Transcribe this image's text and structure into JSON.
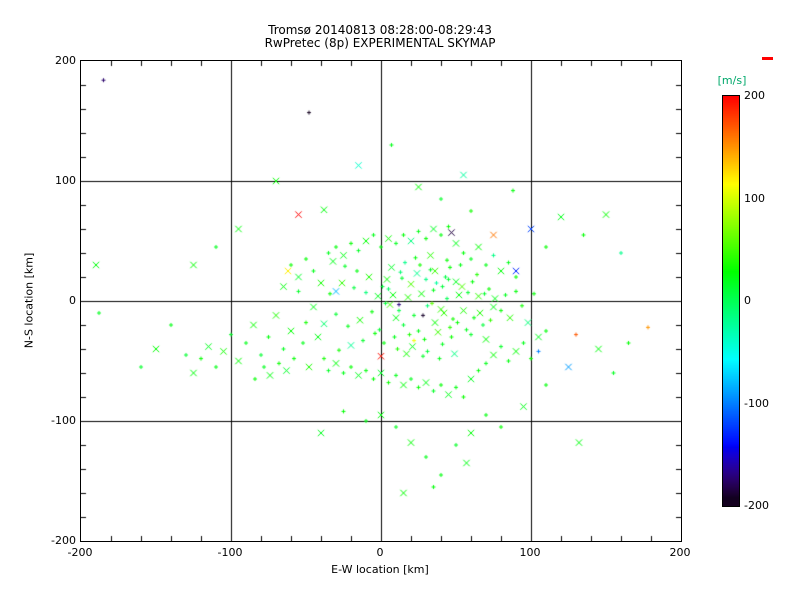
{
  "title_line1": "Tromsø 20140813 08:28:00-08:29:43",
  "title_line2": "RwPretec (8p) EXPERIMENTAL SKYMAP",
  "axes": {
    "xlabel": "E-W location [km]",
    "ylabel": "N-S location [km]",
    "xticks": [
      -200,
      -100,
      0,
      100,
      200
    ],
    "yticks": [
      200,
      100,
      0,
      -100,
      -200
    ],
    "xlim": [
      -200,
      200
    ],
    "ylim": [
      -200,
      200
    ],
    "grid_values": [
      -100,
      0,
      100
    ],
    "minor_tick_step": 20
  },
  "colorbar": {
    "label": "[m/s]",
    "ticks": [
      200,
      100,
      0,
      -100,
      -200
    ],
    "min": -200,
    "max": 200,
    "label_color": "#00a86b",
    "max_indicator_color": "#ff0000"
  },
  "chart_data": {
    "type": "scatter",
    "title": "Tromsø 20140813 08:28:00-08:29:43 / RwPretec (8p) EXPERIMENTAL SKYMAP",
    "xlabel": "E-W location [km]",
    "ylabel": "N-S location [km]",
    "xlim": [
      -200,
      200
    ],
    "ylim": [
      -200,
      200
    ],
    "color_scale": {
      "label": "[m/s]",
      "min": -200,
      "max": 200,
      "type": "rainbow"
    },
    "point_format": [
      "x_km",
      "y_km",
      "velocity_mps",
      "marker_size_class"
    ],
    "points": [
      [
        3,
        -2,
        10,
        1
      ],
      [
        8,
        5,
        25,
        2
      ],
      [
        12,
        -8,
        5,
        1
      ],
      [
        18,
        3,
        40,
        2
      ],
      [
        22,
        -12,
        15,
        1
      ],
      [
        27,
        6,
        30,
        2
      ],
      [
        31,
        -4,
        -10,
        1
      ],
      [
        35,
        9,
        20,
        1
      ],
      [
        40,
        -7,
        45,
        2
      ],
      [
        44,
        2,
        0,
        1
      ],
      [
        48,
        -15,
        35,
        1
      ],
      [
        52,
        5,
        25,
        2
      ],
      [
        15,
        -20,
        10,
        1
      ],
      [
        20,
        14,
        55,
        2
      ],
      [
        25,
        -25,
        20,
        1
      ],
      [
        30,
        18,
        -15,
        1
      ],
      [
        36,
        -18,
        30,
        2
      ],
      [
        41,
        12,
        8,
        1
      ],
      [
        46,
        -22,
        42,
        1
      ],
      [
        50,
        16,
        18,
        2
      ],
      [
        5,
        10,
        -5,
        1
      ],
      [
        10,
        -14,
        22,
        2
      ],
      [
        14,
        19,
        12,
        1
      ],
      [
        19,
        -28,
        38,
        1
      ],
      [
        24,
        23,
        -20,
        2
      ],
      [
        29,
        -32,
        28,
        1
      ],
      [
        33,
        26,
        15,
        1
      ],
      [
        38,
        -26,
        50,
        2
      ],
      [
        43,
        20,
        5,
        1
      ],
      [
        47,
        -30,
        33,
        1
      ],
      [
        -2,
        4,
        18,
        2
      ],
      [
        -6,
        -9,
        27,
        1
      ],
      [
        -10,
        7,
        -12,
        1
      ],
      [
        -14,
        -16,
        35,
        2
      ],
      [
        -18,
        11,
        8,
        1
      ],
      [
        -22,
        -21,
        20,
        1
      ],
      [
        -26,
        15,
        45,
        2
      ],
      [
        -30,
        -11,
        12,
        1
      ],
      [
        -34,
        6,
        30,
        1
      ],
      [
        -38,
        -19,
        -8,
        2
      ],
      [
        2,
        -35,
        25,
        1
      ],
      [
        7,
        28,
        15,
        2
      ],
      [
        11,
        -40,
        40,
        1
      ],
      [
        16,
        32,
        -18,
        1
      ],
      [
        21,
        -38,
        22,
        2
      ],
      [
        26,
        30,
        35,
        1
      ],
      [
        31,
        -42,
        10,
        1
      ],
      [
        36,
        25,
        48,
        2
      ],
      [
        41,
        -36,
        18,
        1
      ],
      [
        46,
        28,
        28,
        1
      ],
      [
        55,
        -8,
        38,
        2
      ],
      [
        58,
        7,
        12,
        1
      ],
      [
        62,
        -14,
        25,
        1
      ],
      [
        65,
        4,
        45,
        2
      ],
      [
        68,
        -20,
        8,
        1
      ],
      [
        72,
        10,
        32,
        1
      ],
      [
        75,
        -5,
        20,
        2
      ],
      [
        60,
        -28,
        15,
        1
      ],
      [
        64,
        22,
        40,
        1
      ],
      [
        70,
        -32,
        28,
        2
      ],
      [
        -1,
        -24,
        12,
        1
      ],
      [
        4,
        18,
        30,
        2
      ],
      [
        9,
        -30,
        20,
        1
      ],
      [
        13,
        24,
        -10,
        1
      ],
      [
        17,
        -44,
        35,
        2
      ],
      [
        23,
        36,
        25,
        1
      ],
      [
        28,
        -46,
        15,
        1
      ],
      [
        33,
        38,
        42,
        2
      ],
      [
        39,
        -48,
        20,
        1
      ],
      [
        44,
        34,
        30,
        1
      ],
      [
        49,
        -44,
        -15,
        2
      ],
      [
        53,
        30,
        22,
        1
      ],
      [
        6,
        -3,
        50,
        2
      ],
      [
        1,
        12,
        8,
        1
      ],
      [
        -4,
        -27,
        28,
        1
      ],
      [
        -8,
        20,
        38,
        2
      ],
      [
        -12,
        -33,
        14,
        1
      ],
      [
        -16,
        25,
        24,
        1
      ],
      [
        -20,
        -37,
        -22,
        2
      ],
      [
        -24,
        29,
        16,
        1
      ],
      [
        -28,
        -41,
        34,
        1
      ],
      [
        -32,
        33,
        20,
        2
      ],
      [
        34,
        -2,
        60,
        1
      ],
      [
        37,
        15,
        -25,
        1
      ],
      [
        42,
        -10,
        44,
        2
      ],
      [
        45,
        18,
        12,
        1
      ],
      [
        51,
        -18,
        30,
        1
      ],
      [
        54,
        12,
        55,
        2
      ],
      [
        57,
        -24,
        18,
        1
      ],
      [
        61,
        16,
        26,
        1
      ],
      [
        66,
        -10,
        38,
        2
      ],
      [
        69,
        6,
        14,
        1
      ],
      [
        73,
        -16,
        46,
        1
      ],
      [
        76,
        2,
        22,
        2
      ],
      [
        80,
        -8,
        30,
        1
      ],
      [
        83,
        5,
        18,
        1
      ],
      [
        86,
        -14,
        42,
        2
      ],
      [
        90,
        8,
        26,
        1
      ],
      [
        94,
        -4,
        34,
        1
      ],
      [
        98,
        -18,
        -12,
        2
      ],
      [
        102,
        6,
        28,
        1
      ],
      [
        -45,
        -5,
        20,
        2
      ],
      [
        -50,
        -18,
        35,
        1
      ],
      [
        -55,
        8,
        15,
        1
      ],
      [
        -60,
        -25,
        28,
        2
      ],
      [
        -65,
        -40,
        18,
        1
      ],
      [
        -70,
        -12,
        40,
        2
      ],
      [
        -75,
        -30,
        25,
        1
      ],
      [
        -80,
        -45,
        12,
        1
      ],
      [
        -85,
        -20,
        32,
        2
      ],
      [
        -90,
        -35,
        20,
        1
      ],
      [
        -95,
        -50,
        28,
        2
      ],
      [
        -100,
        -28,
        15,
        1
      ],
      [
        -105,
        -42,
        35,
        2
      ],
      [
        -110,
        -55,
        22,
        1
      ],
      [
        -115,
        -38,
        18,
        2
      ],
      [
        -120,
        -48,
        30,
        1
      ],
      [
        -125,
        -60,
        25,
        2
      ],
      [
        -130,
        -45,
        12,
        1
      ],
      [
        -48,
        -55,
        38,
        2
      ],
      [
        -52,
        -35,
        20,
        1
      ],
      [
        -58,
        -48,
        28,
        1
      ],
      [
        -63,
        -58,
        15,
        2
      ],
      [
        -68,
        -52,
        32,
        1
      ],
      [
        -74,
        -62,
        24,
        2
      ],
      [
        -78,
        -55,
        18,
        1
      ],
      [
        -84,
        -65,
        28,
        1
      ],
      [
        -42,
        -30,
        22,
        2
      ],
      [
        -38,
        -48,
        35,
        1
      ],
      [
        -35,
        -58,
        16,
        1
      ],
      [
        -30,
        -52,
        26,
        2
      ],
      [
        -25,
        -60,
        20,
        1
      ],
      [
        -20,
        -55,
        30,
        1
      ],
      [
        -15,
        -62,
        18,
        2
      ],
      [
        -10,
        -58,
        24,
        1
      ],
      [
        -5,
        -65,
        28,
        1
      ],
      [
        0,
        -60,
        15,
        2
      ],
      [
        5,
        -68,
        32,
        1
      ],
      [
        10,
        -62,
        20,
        1
      ],
      [
        15,
        -70,
        26,
        2
      ],
      [
        20,
        -65,
        18,
        1
      ],
      [
        25,
        -72,
        30,
        1
      ],
      [
        30,
        -68,
        22,
        2
      ],
      [
        35,
        -75,
        16,
        1
      ],
      [
        40,
        -70,
        28,
        1
      ],
      [
        45,
        -78,
        20,
        2
      ],
      [
        50,
        -72,
        24,
        1
      ],
      [
        55,
        -80,
        32,
        1
      ],
      [
        60,
        -65,
        18,
        2
      ],
      [
        65,
        -58,
        26,
        1
      ],
      [
        70,
        -52,
        20,
        1
      ],
      [
        75,
        -45,
        30,
        2
      ],
      [
        80,
        -38,
        16,
        1
      ],
      [
        85,
        -50,
        24,
        1
      ],
      [
        90,
        -42,
        28,
        2
      ],
      [
        95,
        -35,
        20,
        1
      ],
      [
        100,
        -48,
        32,
        1
      ],
      [
        105,
        -30,
        18,
        2
      ],
      [
        110,
        -25,
        26,
        1
      ],
      [
        -40,
        15,
        35,
        2
      ],
      [
        -45,
        25,
        20,
        1
      ],
      [
        -50,
        35,
        28,
        1
      ],
      [
        -55,
        20,
        15,
        2
      ],
      [
        -60,
        30,
        32,
        1
      ],
      [
        -65,
        12,
        24,
        2
      ],
      [
        -35,
        40,
        18,
        1
      ],
      [
        -30,
        45,
        26,
        1
      ],
      [
        -25,
        38,
        22,
        2
      ],
      [
        -20,
        48,
        30,
        1
      ],
      [
        -15,
        42,
        16,
        1
      ],
      [
        -10,
        50,
        28,
        2
      ],
      [
        -5,
        55,
        20,
        1
      ],
      [
        0,
        45,
        24,
        1
      ],
      [
        5,
        52,
        32,
        2
      ],
      [
        10,
        48,
        18,
        1
      ],
      [
        15,
        55,
        26,
        1
      ],
      [
        20,
        50,
        -14,
        2
      ],
      [
        25,
        58,
        22,
        1
      ],
      [
        30,
        52,
        28,
        1
      ],
      [
        35,
        60,
        16,
        2
      ],
      [
        40,
        55,
        24,
        1
      ],
      [
        45,
        62,
        30,
        1
      ],
      [
        50,
        48,
        20,
        2
      ],
      [
        55,
        40,
        26,
        1
      ],
      [
        60,
        35,
        18,
        1
      ],
      [
        65,
        45,
        28,
        2
      ],
      [
        70,
        30,
        22,
        1
      ],
      [
        75,
        38,
        -16,
        1
      ],
      [
        80,
        25,
        26,
        2
      ],
      [
        85,
        32,
        20,
        1
      ],
      [
        90,
        20,
        30,
        1
      ],
      [
        -185,
        184,
        -175,
        1
      ],
      [
        -48,
        157,
        -200,
        1
      ],
      [
        -15,
        113,
        -40,
        2
      ],
      [
        7,
        130,
        20,
        1
      ],
      [
        25,
        95,
        30,
        2
      ],
      [
        40,
        85,
        15,
        1
      ],
      [
        55,
        105,
        -25,
        2
      ],
      [
        60,
        75,
        35,
        1
      ],
      [
        75,
        55,
        160,
        2
      ],
      [
        88,
        92,
        25,
        1
      ],
      [
        100,
        60,
        -120,
        2
      ],
      [
        110,
        45,
        30,
        1
      ],
      [
        120,
        70,
        20,
        2
      ],
      [
        135,
        55,
        28,
        1
      ],
      [
        150,
        72,
        32,
        2
      ],
      [
        160,
        40,
        -18,
        1
      ],
      [
        -95,
        60,
        25,
        2
      ],
      [
        -110,
        45,
        18,
        1
      ],
      [
        -125,
        30,
        30,
        2
      ],
      [
        -140,
        -20,
        22,
        1
      ],
      [
        -150,
        -40,
        28,
        2
      ],
      [
        -160,
        -55,
        15,
        1
      ],
      [
        -190,
        30,
        25,
        2
      ],
      [
        -188,
        -10,
        18,
        1
      ],
      [
        -70,
        100,
        30,
        2
      ],
      [
        -38,
        76,
        25,
        2
      ],
      [
        -55,
        72,
        200,
        2
      ],
      [
        0,
        -95,
        25,
        2
      ],
      [
        10,
        -105,
        18,
        1
      ],
      [
        20,
        -118,
        28,
        2
      ],
      [
        30,
        -130,
        20,
        1
      ],
      [
        40,
        -145,
        24,
        1
      ],
      [
        15,
        -160,
        30,
        2
      ],
      [
        50,
        -120,
        16,
        1
      ],
      [
        60,
        -110,
        26,
        2
      ],
      [
        -10,
        -100,
        22,
        1
      ],
      [
        -25,
        -92,
        28,
        1
      ],
      [
        -40,
        -110,
        18,
        2
      ],
      [
        70,
        -95,
        24,
        1
      ],
      [
        80,
        -105,
        30,
        1
      ],
      [
        95,
        -88,
        20,
        2
      ],
      [
        110,
        -70,
        26,
        1
      ],
      [
        125,
        -55,
        -90,
        2
      ],
      [
        130,
        -28,
        170,
        1
      ],
      [
        145,
        -40,
        25,
        2
      ],
      [
        155,
        -60,
        18,
        1
      ],
      [
        165,
        -35,
        28,
        1
      ],
      [
        178,
        -22,
        150,
        1
      ],
      [
        57,
        -135,
        22,
        2
      ],
      [
        35,
        -155,
        26,
        1
      ],
      [
        132,
        -118,
        24,
        2
      ],
      [
        47,
        57,
        -185,
        2
      ],
      [
        28,
        -12,
        -190,
        1
      ],
      [
        12,
        -3,
        -170,
        1
      ],
      [
        0,
        -46,
        195,
        2
      ],
      [
        -62,
        25,
        120,
        2
      ],
      [
        22,
        -33,
        110,
        1
      ],
      [
        90,
        25,
        -130,
        2
      ],
      [
        105,
        -42,
        -100,
        1
      ],
      [
        -30,
        8,
        -80,
        2
      ]
    ]
  }
}
